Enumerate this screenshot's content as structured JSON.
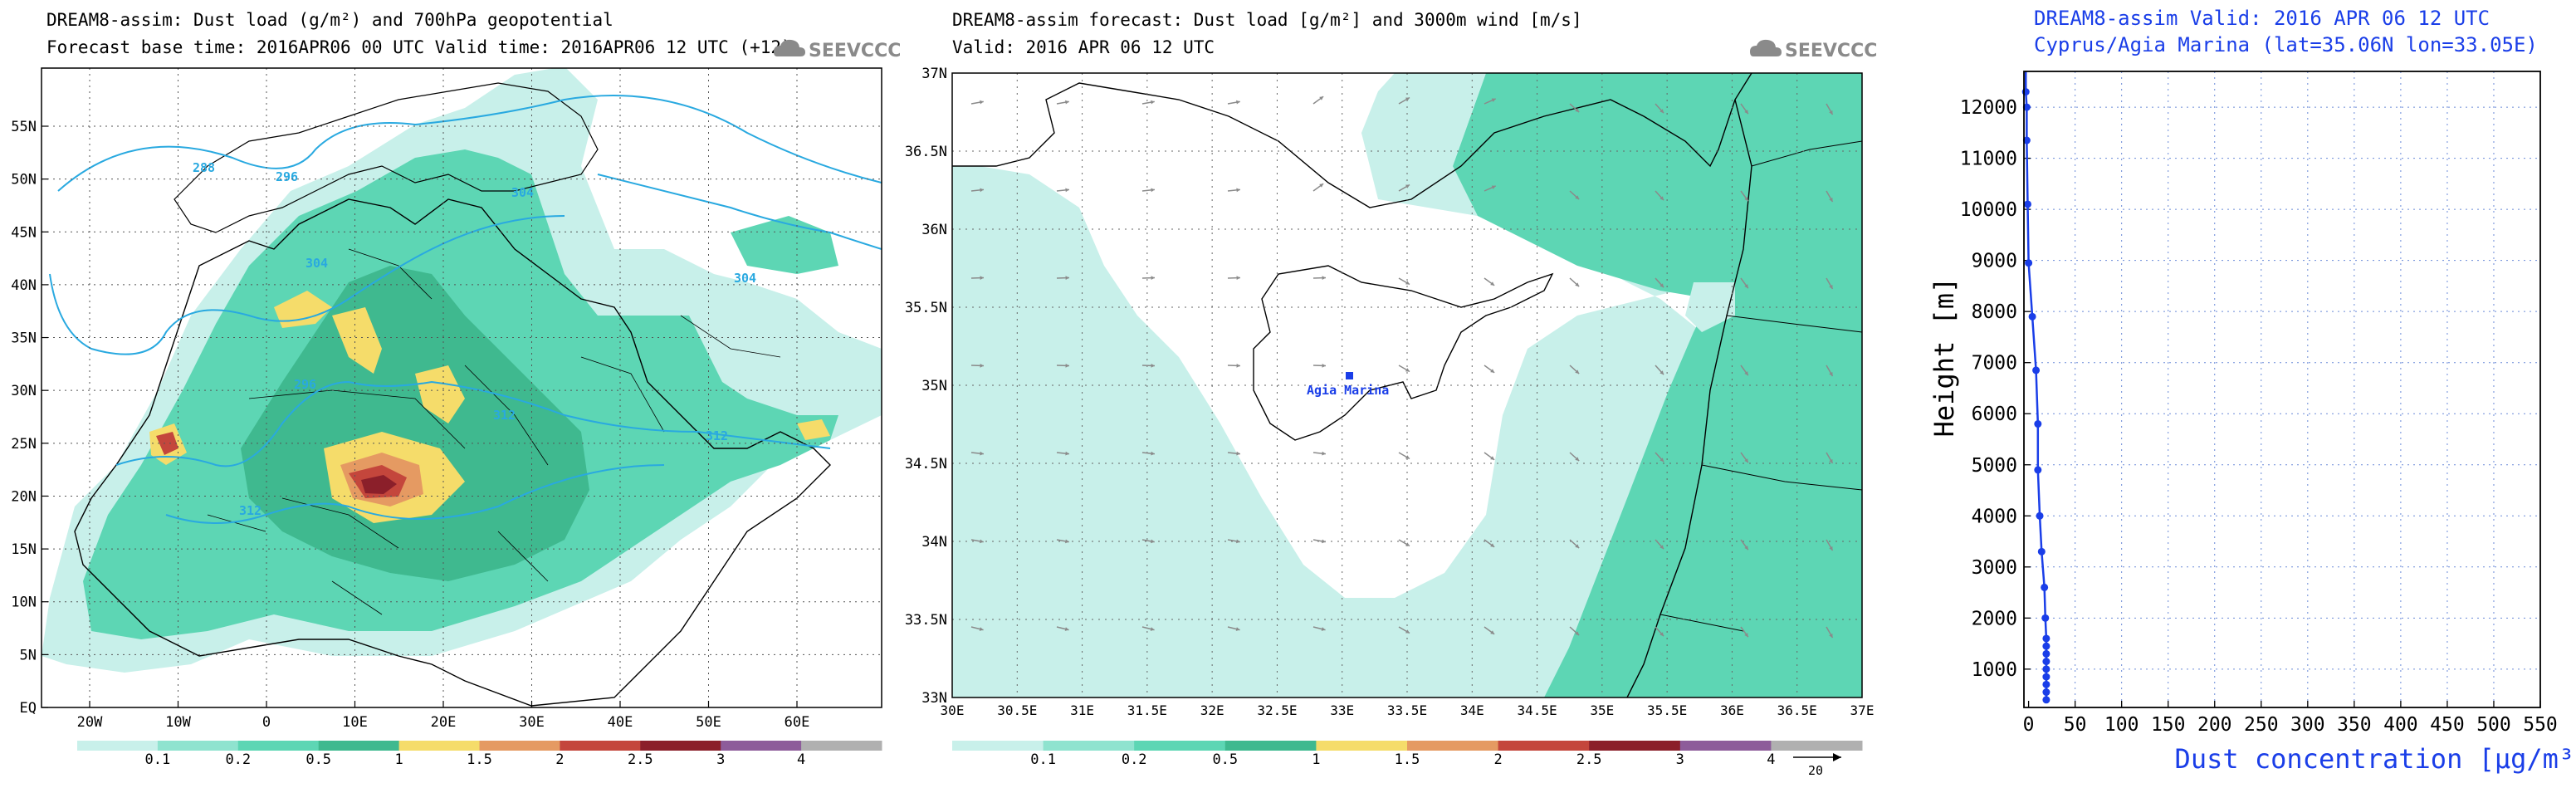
{
  "logo_text": "SEEVCCC",
  "colors": {
    "c01": "#c8f0ea",
    "c02": "#8fe3cf",
    "c05": "#5dd6b4",
    "c1": "#3fb98f",
    "c15": "#f5dc6a",
    "c2": "#e59a62",
    "c25": "#c4463c",
    "c3": "#8b1f2a",
    "c4": "#8d5c9a",
    "cgray": "#b0b0b0",
    "contour": "#29a9e0",
    "profile": "#1a3ee8"
  },
  "map1": {
    "title1": "DREAM8-assim: Dust load (g/m²) and 700hPa geopotential",
    "title2": "Forecast base time: 2016APR06 00 UTC   Valid time: 2016APR06 12 UTC  (+12)",
    "lat_labels": [
      "55N",
      "50N",
      "45N",
      "40N",
      "35N",
      "30N",
      "25N",
      "20N",
      "15N",
      "10N",
      "5N",
      "EQ"
    ],
    "lon_labels": [
      "20W",
      "10W",
      "0",
      "10E",
      "20E",
      "30E",
      "40E",
      "50E",
      "60E"
    ],
    "contour_labels": [
      "288",
      "296",
      "304",
      "304",
      "296",
      "312",
      "312",
      "312",
      "304"
    ]
  },
  "map2": {
    "title1": "DREAM8-assim forecast: Dust load [g/m²] and 3000m wind [m/s]",
    "title2": "Valid: 2016 APR 06  12 UTC",
    "lat_labels": [
      "37N",
      "36.5N",
      "36N",
      "35.5N",
      "35N",
      "34.5N",
      "34N",
      "33.5N",
      "33N"
    ],
    "lon_labels": [
      "30E",
      "30.5E",
      "31E",
      "31.5E",
      "32E",
      "32.5E",
      "33E",
      "33.5E",
      "34E",
      "34.5E",
      "35E",
      "35.5E",
      "36E",
      "36.5E",
      "37E"
    ],
    "station_label": "Agia Marina",
    "wind_ref": "20"
  },
  "colorbar": {
    "labels": [
      "0.1",
      "0.2",
      "0.5",
      "1",
      "1.5",
      "2",
      "2.5",
      "3",
      "4"
    ]
  },
  "chart_data": {
    "type": "line",
    "title": "DREAM8-assim   Valid: 2016 APR 06   12 UTC",
    "subtitle": "Cyprus/Agia Marina (lat=35.06N lon=33.05E)",
    "xlabel": "Dust concentration [μg/m³]",
    "ylabel": "Height [m]",
    "xlim": [
      -5,
      550
    ],
    "ylim": [
      250,
      12700
    ],
    "x_ticks": [
      0,
      50,
      100,
      150,
      200,
      250,
      300,
      350,
      400,
      450,
      500,
      550
    ],
    "y_ticks": [
      1000,
      2000,
      3000,
      4000,
      5000,
      6000,
      7000,
      8000,
      9000,
      10000,
      11000,
      12000
    ],
    "grid": true,
    "series": [
      {
        "name": "Agia Marina",
        "x": [
          19,
          19,
          19,
          19,
          19,
          19,
          19,
          19,
          19,
          18,
          17,
          14,
          12,
          10,
          10,
          8,
          4,
          0,
          -1,
          -2,
          -2,
          -3,
          -3,
          -3,
          -3
        ],
        "y": [
          400,
          550,
          700,
          850,
          1000,
          1150,
          1300,
          1450,
          1600,
          2000,
          2600,
          3300,
          4000,
          4900,
          5800,
          6850,
          7900,
          8950,
          10100,
          11350,
          12000,
          12300,
          12500,
          12650,
          12700
        ]
      }
    ]
  }
}
